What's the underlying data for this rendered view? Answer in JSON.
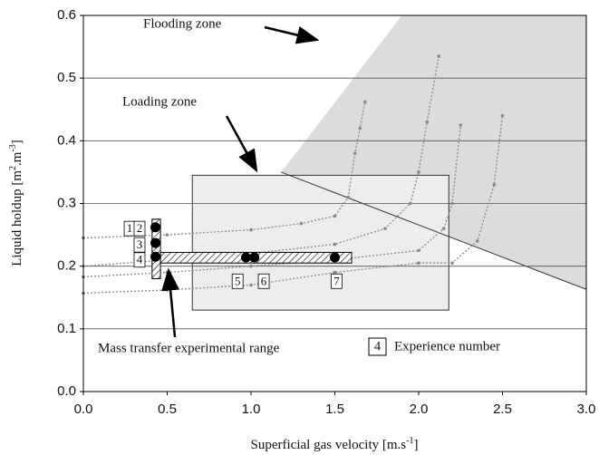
{
  "chart_data": {
    "type": "line",
    "xlabel": [
      "Superficial gas velocity [m.s",
      "-1",
      "]"
    ],
    "ylabel": [
      "Liquid holdup [m",
      "2",
      ".m",
      "-3",
      "]"
    ],
    "xlim": [
      0,
      3
    ],
    "ylim": [
      0,
      0.6
    ],
    "xticks": [
      {
        "value": 0,
        "label": "0.0"
      },
      {
        "value": 0.5,
        "label": "0.5"
      },
      {
        "value": 1,
        "label": "1.0"
      },
      {
        "value": 1.5,
        "label": "1.5"
      },
      {
        "value": 2,
        "label": "2.0"
      },
      {
        "value": 2.5,
        "label": "2.5"
      },
      {
        "value": 3,
        "label": "3.0"
      }
    ],
    "yticks": [
      {
        "value": 0,
        "label": "0.0"
      },
      {
        "value": 0.1,
        "label": "0.1"
      },
      {
        "value": 0.2,
        "label": "0.2"
      },
      {
        "value": 0.3,
        "label": "0.3"
      },
      {
        "value": 0.4,
        "label": "0.4"
      },
      {
        "value": 0.5,
        "label": "0.5"
      },
      {
        "value": 0.6,
        "label": "0.6"
      }
    ],
    "grid": true,
    "zones": [
      {
        "label": "Flooding zone",
        "color": "#dcdcdc",
        "x": [
          1.18,
          1.9,
          3,
          3
        ],
        "y": [
          0.35,
          0.6,
          0.6,
          0.163
        ]
      },
      {
        "label": "Loading zone",
        "color": "#ededed",
        "x": [
          0.65,
          2.18,
          2.18,
          0.65
        ],
        "y": [
          0.13,
          0.13,
          0.345,
          0.345
        ]
      }
    ],
    "series": [
      {
        "color": "#888888",
        "x": [
          0,
          0.5,
          1.0,
          1.3,
          1.5,
          1.58,
          1.62,
          1.65,
          1.68
        ],
        "values": [
          0.245,
          0.25,
          0.258,
          0.268,
          0.28,
          0.31,
          0.38,
          0.42,
          0.462
        ]
      },
      {
        "color": "#888888",
        "x": [
          0,
          0.5,
          1.0,
          1.5,
          1.8,
          1.95,
          2.0,
          2.05,
          2.12
        ],
        "values": [
          0.2,
          0.21,
          0.22,
          0.235,
          0.26,
          0.3,
          0.35,
          0.43,
          0.535
        ]
      },
      {
        "color": "#888888",
        "x": [
          0,
          0.5,
          1.0,
          1.5,
          2.0,
          2.15,
          2.2,
          2.25
        ],
        "values": [
          0.183,
          0.19,
          0.2,
          0.21,
          0.225,
          0.26,
          0.3,
          0.425
        ]
      },
      {
        "color": "#888888",
        "x": [
          0,
          0.5,
          1.0,
          1.5,
          2.0,
          2.2,
          2.35,
          2.45,
          2.5
        ],
        "values": [
          0.157,
          0.162,
          0.17,
          0.19,
          0.205,
          0.205,
          0.24,
          0.33,
          0.44
        ]
      }
    ],
    "range": {
      "label": "Mass transfer experimental range",
      "x": [
        0.46,
        1.6
      ],
      "y": [
        0.205,
        0.222
      ],
      "x2": [
        0.41,
        0.46
      ],
      "y2": [
        0.18,
        0.275
      ]
    },
    "experiments": {
      "x": [
        0.43,
        0.43,
        0.43,
        0.97,
        1.02,
        1.5
      ],
      "values": [
        0.262,
        0.237,
        0.215,
        0.214,
        0.214,
        0.214
      ]
    },
    "experiment_labels": [
      {
        "text": "1",
        "x": 0.276,
        "y": 0.26
      },
      {
        "text": "2",
        "x": 0.335,
        "y": 0.26
      },
      {
        "text": "3",
        "x": 0.335,
        "y": 0.234
      },
      {
        "text": "4",
        "x": 0.335,
        "y": 0.21
      },
      {
        "text": "5",
        "x": 0.92,
        "y": 0.176
      },
      {
        "text": "6",
        "x": 1.076,
        "y": 0.176
      },
      {
        "text": "7",
        "x": 1.51,
        "y": 0.176
      }
    ],
    "legend_box": "4",
    "legend_text": "Experience number"
  }
}
